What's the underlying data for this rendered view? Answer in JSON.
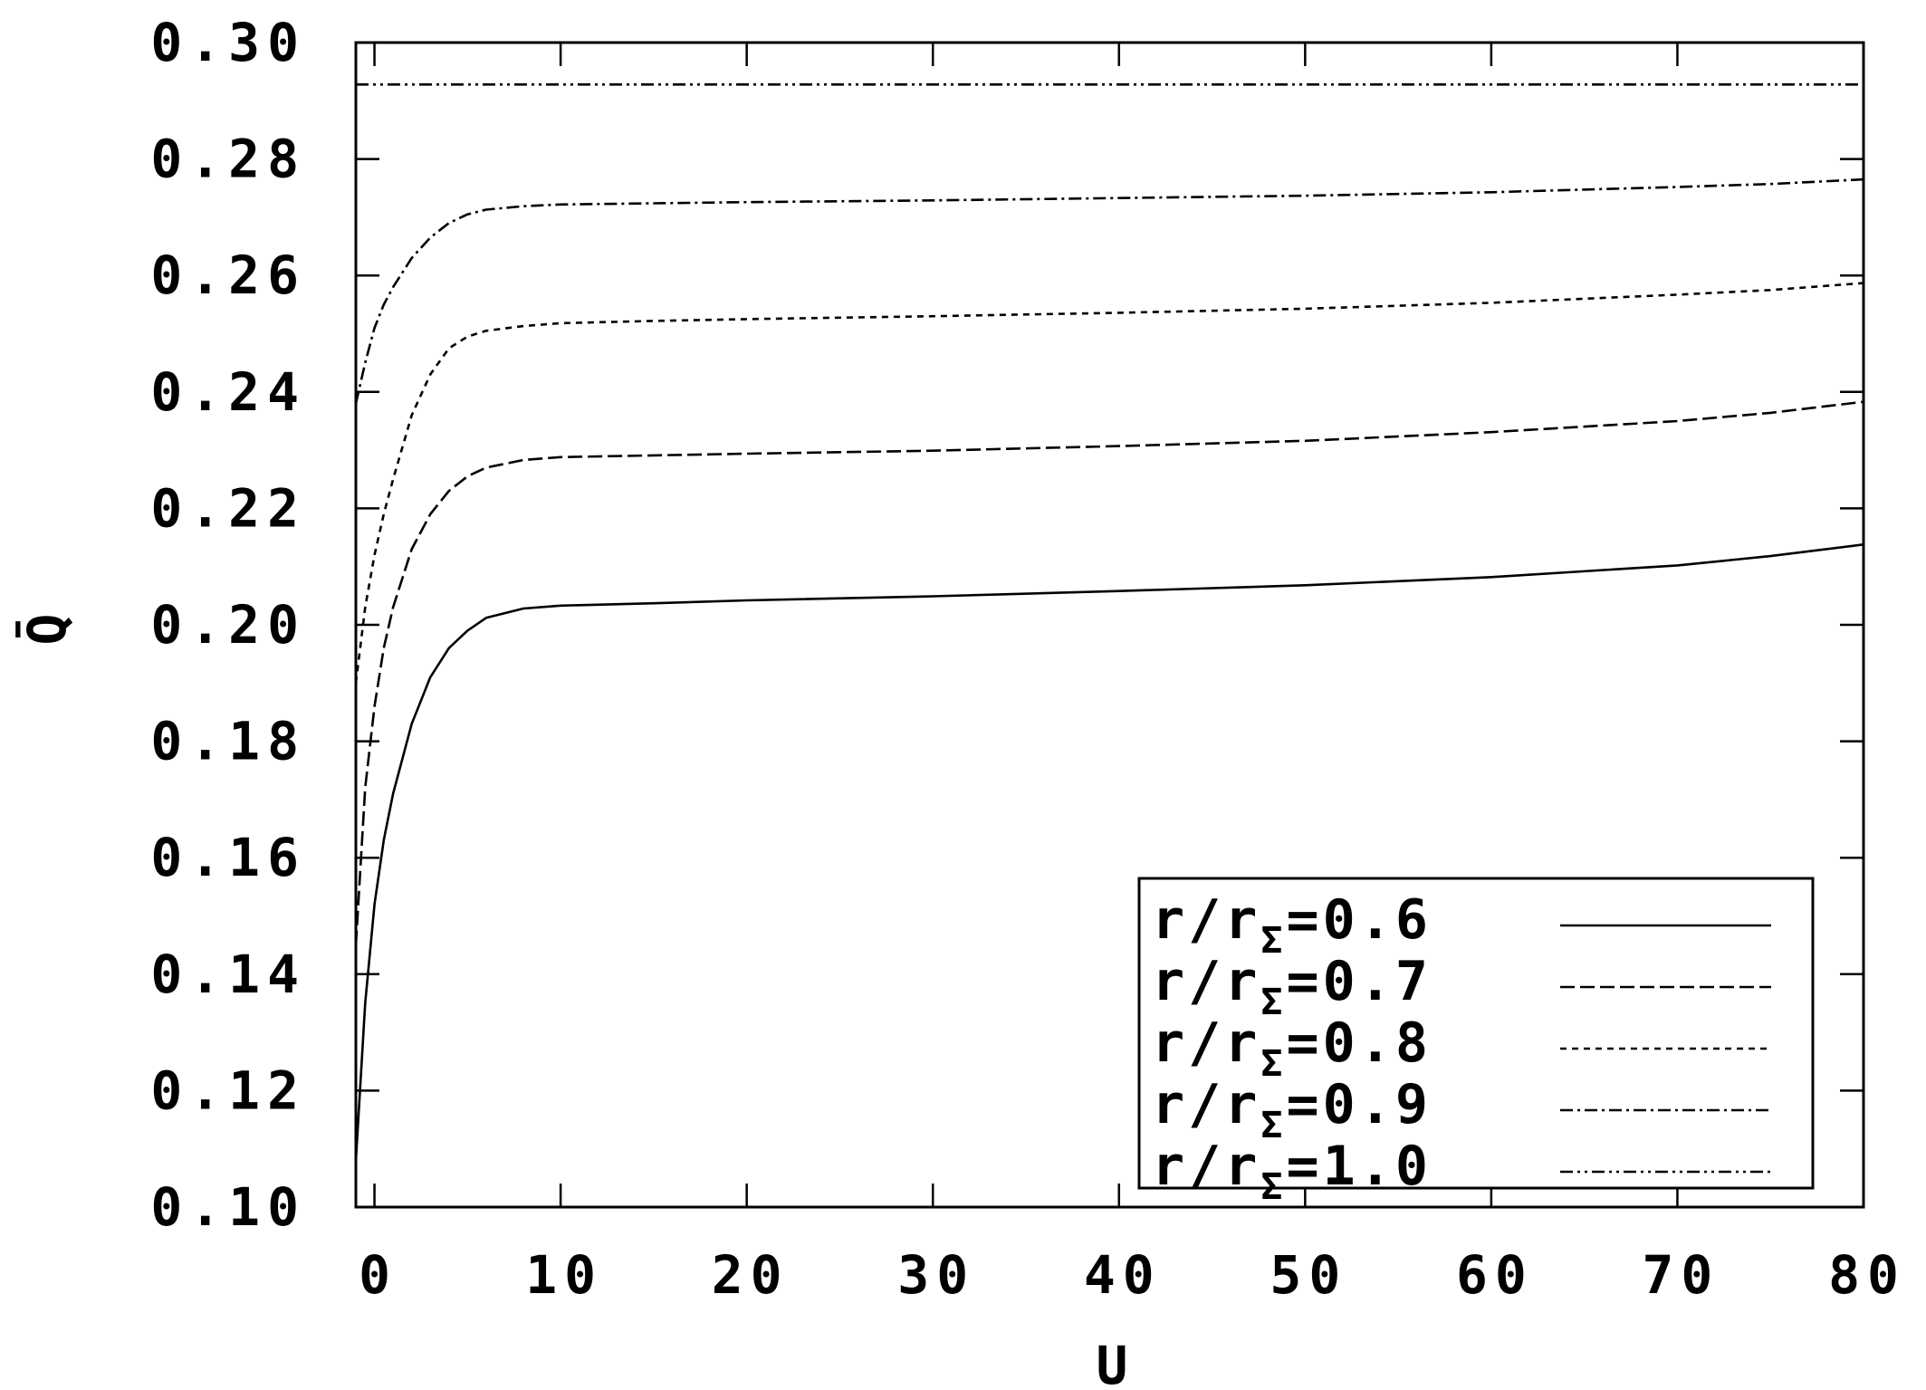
{
  "chart_data": {
    "type": "line",
    "title": "",
    "xlabel": "U",
    "ylabel": "Q̄",
    "xlim": [
      -1,
      80
    ],
    "ylim": [
      0.1,
      0.3
    ],
    "x_ticks": [
      0,
      10,
      20,
      30,
      40,
      50,
      60,
      70,
      80
    ],
    "y_ticks": [
      0.1,
      0.12,
      0.14,
      0.16,
      0.18,
      0.2,
      0.22,
      0.24,
      0.26,
      0.28,
      0.3
    ],
    "x_tick_labels": [
      "0",
      "10",
      "20",
      "30",
      "40",
      "50",
      "60",
      "70",
      "80"
    ],
    "y_tick_labels": [
      "0.10",
      "0.12",
      "0.14",
      "0.16",
      "0.18",
      "0.20",
      "0.22",
      "0.24",
      "0.26",
      "0.28",
      "0.30"
    ],
    "grid": false,
    "legend_position": "bottom-right",
    "series": [
      {
        "name": "r/rΣ=0.6",
        "legend_main": "r/r",
        "legend_sub": "Σ",
        "legend_value": "=0.6",
        "dash": "solid",
        "points": [
          [
            -1,
            0.108
          ],
          [
            -0.5,
            0.135
          ],
          [
            0,
            0.152
          ],
          [
            0.5,
            0.163
          ],
          [
            1,
            0.171
          ],
          [
            2,
            0.183
          ],
          [
            3,
            0.191
          ],
          [
            4,
            0.196
          ],
          [
            5,
            0.199
          ],
          [
            6,
            0.2012
          ],
          [
            8,
            0.2028
          ],
          [
            10,
            0.2033
          ],
          [
            15,
            0.2037
          ],
          [
            20,
            0.2042
          ],
          [
            30,
            0.2049
          ],
          [
            40,
            0.2058
          ],
          [
            50,
            0.2068
          ],
          [
            60,
            0.2082
          ],
          [
            70,
            0.2102
          ],
          [
            75,
            0.2118
          ],
          [
            80,
            0.2138
          ]
        ]
      },
      {
        "name": "r/rΣ=0.7",
        "legend_main": "r/r",
        "legend_sub": "Σ",
        "legend_value": "=0.7",
        "dash": "dashed",
        "points": [
          [
            -1,
            0.145
          ],
          [
            -0.5,
            0.172
          ],
          [
            0,
            0.186
          ],
          [
            0.5,
            0.196
          ],
          [
            1,
            0.203
          ],
          [
            2,
            0.213
          ],
          [
            3,
            0.219
          ],
          [
            4,
            0.223
          ],
          [
            5,
            0.2255
          ],
          [
            6,
            0.227
          ],
          [
            8,
            0.2283
          ],
          [
            10,
            0.2288
          ],
          [
            15,
            0.2291
          ],
          [
            20,
            0.2294
          ],
          [
            30,
            0.2299
          ],
          [
            40,
            0.2307
          ],
          [
            50,
            0.2316
          ],
          [
            60,
            0.2331
          ],
          [
            70,
            0.235
          ],
          [
            75,
            0.2364
          ],
          [
            80,
            0.2383
          ]
        ]
      },
      {
        "name": "r/rΣ=0.8",
        "legend_main": "r/r",
        "legend_sub": "Σ",
        "legend_value": "=0.8",
        "dash": "short-dashed",
        "points": [
          [
            -1,
            0.19
          ],
          [
            -0.5,
            0.203
          ],
          [
            0,
            0.212
          ],
          [
            0.5,
            0.219
          ],
          [
            1,
            0.225
          ],
          [
            2,
            0.236
          ],
          [
            3,
            0.243
          ],
          [
            4,
            0.2475
          ],
          [
            5,
            0.2495
          ],
          [
            6,
            0.2505
          ],
          [
            8,
            0.2513
          ],
          [
            10,
            0.2518
          ],
          [
            15,
            0.2522
          ],
          [
            20,
            0.2525
          ],
          [
            30,
            0.253
          ],
          [
            40,
            0.2536
          ],
          [
            50,
            0.2543
          ],
          [
            60,
            0.2553
          ],
          [
            70,
            0.2567
          ],
          [
            75,
            0.2575
          ],
          [
            80,
            0.2587
          ]
        ]
      },
      {
        "name": "r/rΣ=0.9",
        "legend_main": "r/r",
        "legend_sub": "Σ",
        "legend_value": "=0.9",
        "dash": "dash-dot",
        "points": [
          [
            -1,
            0.238
          ],
          [
            -0.5,
            0.245
          ],
          [
            0,
            0.251
          ],
          [
            0.5,
            0.255
          ],
          [
            1,
            0.258
          ],
          [
            2,
            0.263
          ],
          [
            3,
            0.2665
          ],
          [
            4,
            0.269
          ],
          [
            5,
            0.2705
          ],
          [
            6,
            0.2713
          ],
          [
            8,
            0.2719
          ],
          [
            10,
            0.2722
          ],
          [
            15,
            0.2724
          ],
          [
            20,
            0.2726
          ],
          [
            30,
            0.2729
          ],
          [
            40,
            0.2733
          ],
          [
            50,
            0.2737
          ],
          [
            60,
            0.2743
          ],
          [
            70,
            0.2752
          ],
          [
            75,
            0.2757
          ],
          [
            80,
            0.2765
          ]
        ]
      },
      {
        "name": "r/rΣ=1.0",
        "legend_main": "r/r",
        "legend_sub": "Σ",
        "legend_value": "=1.0",
        "dash": "dash-dot-dot",
        "points": [
          [
            -1,
            0.2928
          ],
          [
            80,
            0.2928
          ]
        ]
      }
    ]
  }
}
